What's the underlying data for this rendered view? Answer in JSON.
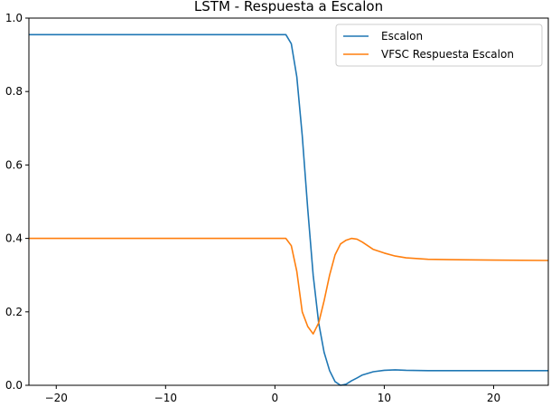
{
  "chart_data": {
    "type": "line",
    "title": "LSTM - Respuesta a Escalon",
    "xlabel": "",
    "ylabel": "",
    "xlim": [
      -22.5,
      25
    ],
    "ylim": [
      0.0,
      1.0
    ],
    "xticks": [
      -20,
      -10,
      0,
      10,
      20
    ],
    "xtick_labels": [
      "−20",
      "−10",
      "0",
      "10",
      "20"
    ],
    "yticks": [
      0.0,
      0.2,
      0.4,
      0.6,
      0.8,
      1.0
    ],
    "ytick_labels": [
      "0.0",
      "0.2",
      "0.4",
      "0.6",
      "0.8",
      "1.0"
    ],
    "grid": false,
    "legend_position": "top-right",
    "series": [
      {
        "name": "Escalon",
        "color": "#1f77b4",
        "x": [
          -22.5,
          1.0,
          1.5,
          2.0,
          2.5,
          3.0,
          3.5,
          4.0,
          4.5,
          5.0,
          5.5,
          6.0,
          6.5,
          7.0,
          7.5,
          8.0,
          9.0,
          10.0,
          11.0,
          12.0,
          14.0,
          16.0,
          20.0,
          25.0
        ],
        "y": [
          0.955,
          0.955,
          0.93,
          0.84,
          0.68,
          0.48,
          0.3,
          0.17,
          0.09,
          0.04,
          0.01,
          0.0,
          0.003,
          0.012,
          0.02,
          0.028,
          0.037,
          0.041,
          0.042,
          0.041,
          0.04,
          0.04,
          0.04,
          0.04
        ]
      },
      {
        "name": "VFSC Respuesta Escalon",
        "color": "#ff7f0e",
        "x": [
          -22.5,
          1.0,
          1.5,
          2.0,
          2.5,
          3.0,
          3.5,
          4.0,
          4.5,
          5.0,
          5.5,
          6.0,
          6.5,
          7.0,
          7.5,
          8.0,
          9.0,
          10.0,
          11.0,
          12.0,
          14.0,
          16.0,
          20.0,
          25.0
        ],
        "y": [
          0.4,
          0.4,
          0.38,
          0.31,
          0.2,
          0.16,
          0.14,
          0.17,
          0.23,
          0.3,
          0.355,
          0.385,
          0.395,
          0.4,
          0.398,
          0.39,
          0.37,
          0.36,
          0.352,
          0.347,
          0.343,
          0.342,
          0.341,
          0.34
        ]
      }
    ]
  }
}
